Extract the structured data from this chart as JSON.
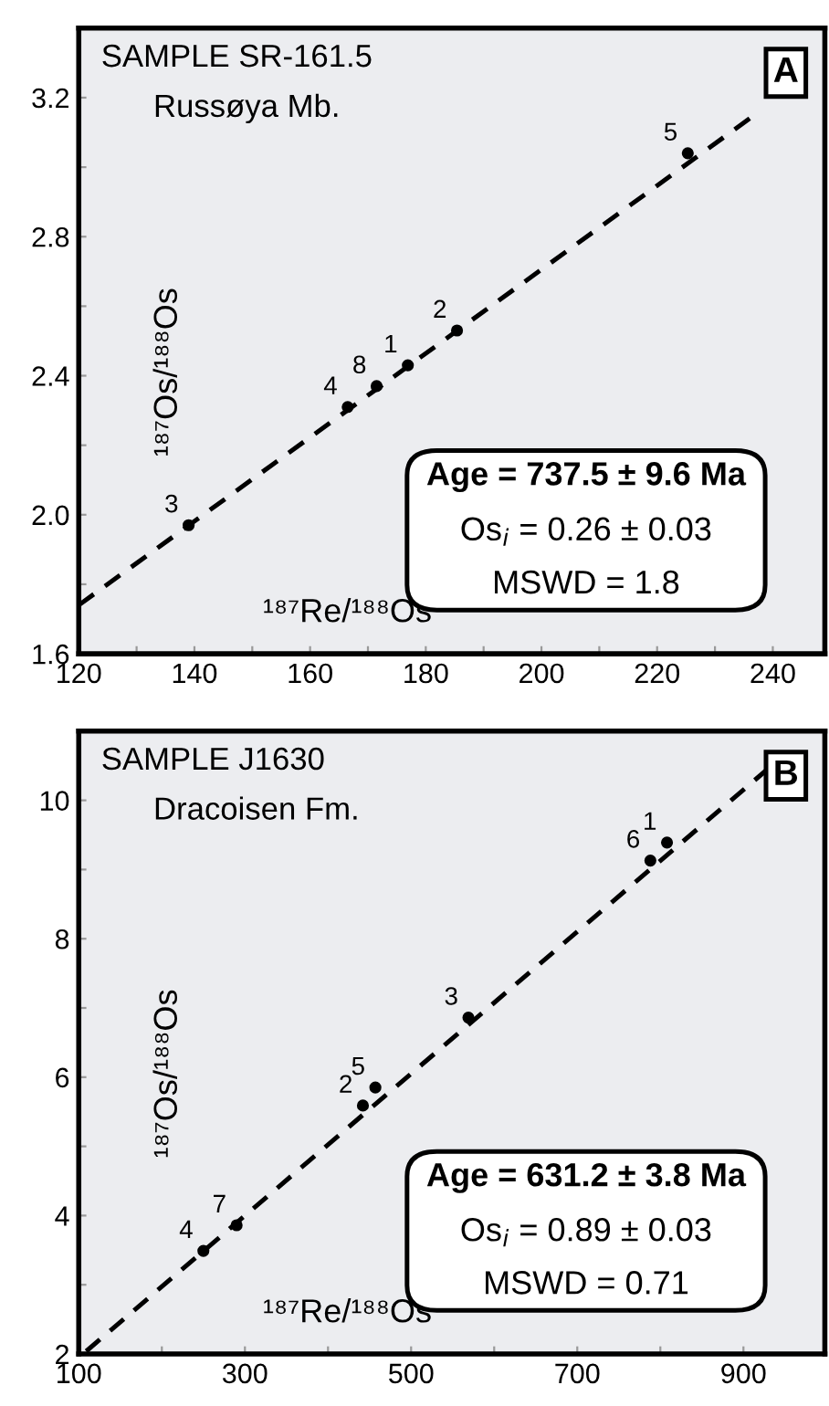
{
  "chart_data": [
    {
      "type": "scatter",
      "title": "SAMPLE SR-161.5",
      "subtitle": "Russøya Mb.",
      "xlabel": "¹⁸⁷Re/¹⁸⁸Os",
      "ylabel": "¹⁸⁷Os/¹⁸⁸Os",
      "xlim": [
        120,
        249
      ],
      "ylim": [
        1.6,
        3.4
      ],
      "xticks": [
        120,
        {
          "value": 130,
          "label": null
        },
        140,
        {
          "value": 150,
          "label": null
        },
        160,
        {
          "value": 170,
          "label": null
        },
        180,
        {
          "value": 190,
          "label": null
        },
        200,
        {
          "value": 210,
          "label": null
        },
        220,
        {
          "value": 230,
          "label": null
        },
        240
      ],
      "yticks": [
        1.6,
        {
          "value": 1.8,
          "label": null
        },
        {
          "value": 2.0,
          "label": "2.0"
        },
        {
          "value": 2.2,
          "label": null
        },
        2.4,
        {
          "value": 2.6,
          "label": null
        },
        2.8,
        {
          "value": 3.0,
          "label": null
        },
        3.2
      ],
      "grid": false,
      "legend": false,
      "series": [
        {
          "color": "#000000",
          "marker": "circle",
          "x": [
            225.3,
            185.4,
            176.9,
            171.5,
            166.5,
            139.0
          ],
          "values": [
            3.04,
            2.53,
            2.43,
            2.37,
            2.31,
            1.97
          ]
        },
        {
          "type": "line",
          "color": "#000000",
          "line_style": "dashed",
          "marker": "none",
          "x": [
            120,
            236
          ],
          "values": [
            1.74,
            3.14
          ]
        }
      ],
      "annotations": [
        "A",
        "Age = 737.5 ± 9.6 Ma",
        "Os$_{i}$ = 0.26 ± 0.03",
        "MSWD = 1.8",
        {
          "text": "5",
          "x": 225.3,
          "y": 3.04
        },
        {
          "text": "2",
          "x": 185.4,
          "y": 2.53
        },
        {
          "text": "1",
          "x": 176.9,
          "y": 2.43
        },
        {
          "text": "8",
          "x": 171.5,
          "y": 2.37
        },
        {
          "text": "4",
          "x": 166.5,
          "y": 2.31
        },
        {
          "text": "3",
          "x": 139.0,
          "y": 1.97
        }
      ]
    },
    {
      "type": "scatter",
      "title": "SAMPLE J1630",
      "subtitle": "Dracoisen Fm.",
      "xlabel": "¹⁸⁷Re/¹⁸⁸Os",
      "ylabel": "¹⁸⁷Os/¹⁸⁸Os",
      "xlim": [
        100,
        998
      ],
      "ylim": [
        2,
        11
      ],
      "xticks": [
        100,
        {
          "value": 200,
          "label": null
        },
        300,
        {
          "value": 400,
          "label": null
        },
        500,
        {
          "value": 600,
          "label": null
        },
        700,
        {
          "value": 800,
          "label": null
        },
        900
      ],
      "yticks": [
        2,
        {
          "value": 3,
          "label": null
        },
        4,
        {
          "value": 5,
          "label": null
        },
        6,
        {
          "value": 7,
          "label": null
        },
        8,
        {
          "value": 9,
          "label": null
        },
        10
      ],
      "grid": false,
      "legend": false,
      "series": [
        {
          "color": "#000000",
          "marker": "circle",
          "x": [
            808,
            788,
            569,
            457,
            442,
            290,
            250
          ],
          "values": [
            9.39,
            9.13,
            6.86,
            5.85,
            5.59,
            3.86,
            3.49
          ]
        },
        {
          "type": "line",
          "color": "#000000",
          "line_style": "dashed",
          "marker": "none",
          "x": [
            109,
            930
          ],
          "values": [
            2.04,
            10.46
          ]
        }
      ],
      "annotations": [
        "B",
        "Age = 631.2 ± 3.8 Ma",
        "Os$_{i}$ = 0.89 ± 0.03",
        "MSWD = 0.71",
        {
          "text": "1",
          "x": 808,
          "y": 9.39
        },
        {
          "text": "6",
          "x": 788,
          "y": 9.13
        },
        {
          "text": "3",
          "x": 569,
          "y": 6.86
        },
        {
          "text": "5",
          "x": 457,
          "y": 5.85
        },
        {
          "text": "2",
          "x": 442,
          "y": 5.59
        },
        {
          "text": "7",
          "x": 290,
          "y": 3.86
        },
        {
          "text": "4",
          "x": 250,
          "y": 3.49
        }
      ]
    }
  ]
}
